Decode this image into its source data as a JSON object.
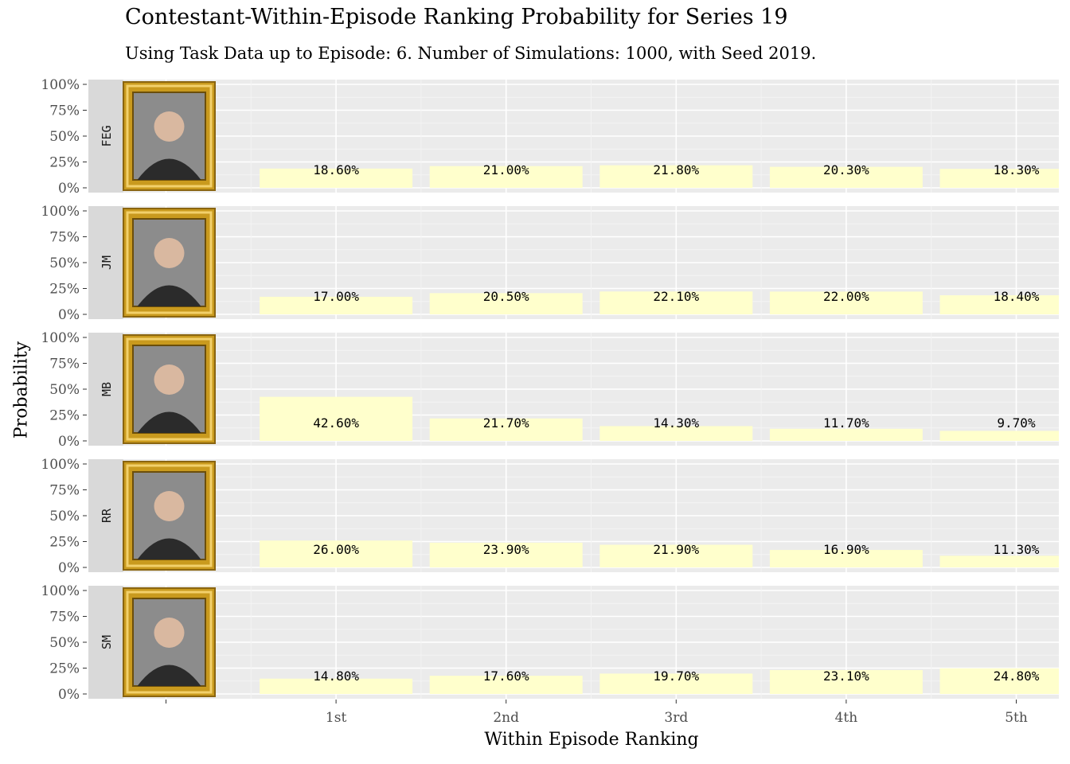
{
  "chart_data": {
    "type": "bar",
    "title": "Contestant-Within-Episode Ranking Probability for Series 19",
    "subtitle": "Using Task Data up to Episode: 6. Number of Simulations: 1000, with Seed 2019.",
    "xlabel": "Within Episode Ranking",
    "ylabel": "Probability",
    "categories": [
      "1st",
      "2nd",
      "3rd",
      "4th",
      "5th"
    ],
    "y_ticks": [
      "0%",
      "25%",
      "50%",
      "75%",
      "100%"
    ],
    "ylim": [
      0,
      1
    ],
    "grid": true,
    "bar_color": "#FFFFCC",
    "facets": [
      {
        "label": "FEG",
        "values": [
          0.186,
          0.21,
          0.218,
          0.203,
          0.183
        ],
        "value_labels": [
          "18.60%",
          "21.00%",
          "21.80%",
          "20.30%",
          "18.30%"
        ]
      },
      {
        "label": "JM",
        "values": [
          0.17,
          0.205,
          0.221,
          0.22,
          0.184
        ],
        "value_labels": [
          "17.00%",
          "20.50%",
          "22.10%",
          "22.00%",
          "18.40%"
        ]
      },
      {
        "label": "MB",
        "values": [
          0.426,
          0.217,
          0.143,
          0.117,
          0.097
        ],
        "value_labels": [
          "42.60%",
          "21.70%",
          "14.30%",
          "11.70%",
          "9.70%"
        ]
      },
      {
        "label": "RR",
        "values": [
          0.26,
          0.239,
          0.219,
          0.169,
          0.113
        ],
        "value_labels": [
          "26.00%",
          "23.90%",
          "21.90%",
          "16.90%",
          "11.30%"
        ]
      },
      {
        "label": "SM",
        "values": [
          0.148,
          0.176,
          0.197,
          0.231,
          0.248
        ],
        "value_labels": [
          "14.80%",
          "17.60%",
          "19.70%",
          "23.10%",
          "24.80%"
        ]
      }
    ]
  }
}
